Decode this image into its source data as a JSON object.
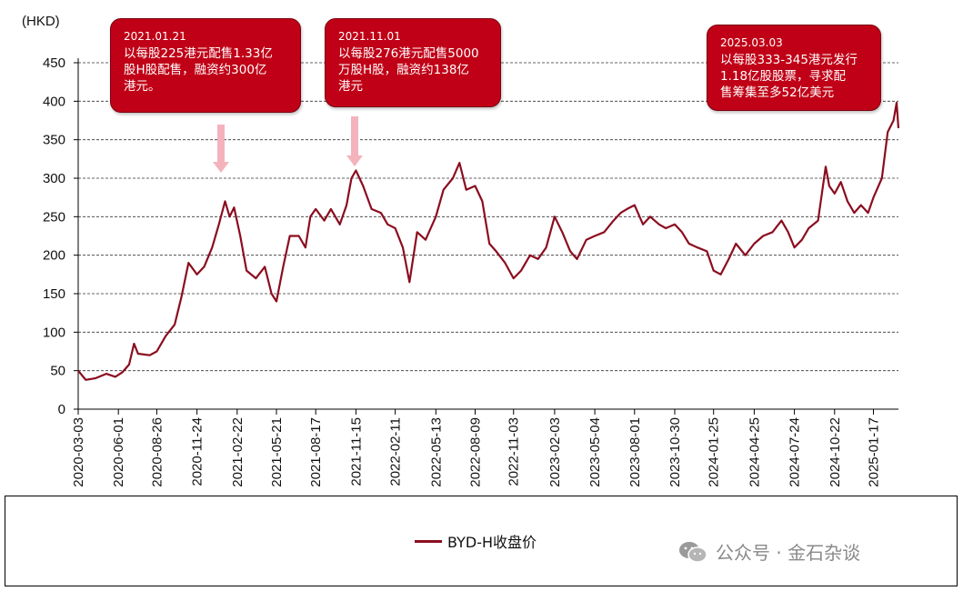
{
  "chart_data": {
    "type": "line",
    "unit_label": "(HKD)",
    "ylim": [
      0,
      450
    ],
    "y_ticks": [
      "0",
      "50",
      "100",
      "150",
      "200",
      "250",
      "300",
      "350",
      "400",
      "450"
    ],
    "x_ticks": [
      "2020-03-03",
      "2020-06-01",
      "2020-08-26",
      "2020-11-24",
      "2021-02-22",
      "2021-05-21",
      "2021-08-17",
      "2021-11-15",
      "2022-02-11",
      "2022-05-13",
      "2022-08-09",
      "2022-11-03",
      "2023-02-03",
      "2023-05-04",
      "2023-08-01",
      "2023-10-30",
      "2024-01-25",
      "2024-04-25",
      "2024-07-24",
      "2024-10-22",
      "2025-01-17"
    ],
    "grid": "horizontal-dashed",
    "legend_position": "bottom-center",
    "series": [
      {
        "name": "BYD-H收盘价",
        "color": "#8b0d1f",
        "points": [
          [
            "2020-03-03",
            50
          ],
          [
            "2020-03-20",
            38
          ],
          [
            "2020-04-10",
            40
          ],
          [
            "2020-05-05",
            46
          ],
          [
            "2020-05-25",
            42
          ],
          [
            "2020-06-10",
            48
          ],
          [
            "2020-06-25",
            58
          ],
          [
            "2020-07-06",
            85
          ],
          [
            "2020-07-15",
            72
          ],
          [
            "2020-08-10",
            70
          ],
          [
            "2020-08-26",
            75
          ],
          [
            "2020-09-15",
            95
          ],
          [
            "2020-10-05",
            110
          ],
          [
            "2020-10-20",
            145
          ],
          [
            "2020-11-05",
            190
          ],
          [
            "2020-11-24",
            175
          ],
          [
            "2020-12-10",
            185
          ],
          [
            "2020-12-28",
            210
          ],
          [
            "2021-01-12",
            240
          ],
          [
            "2021-01-26",
            270
          ],
          [
            "2021-02-05",
            250
          ],
          [
            "2021-02-15",
            262
          ],
          [
            "2021-03-01",
            225
          ],
          [
            "2021-03-15",
            180
          ],
          [
            "2021-04-05",
            170
          ],
          [
            "2021-04-25",
            185
          ],
          [
            "2021-05-10",
            150
          ],
          [
            "2021-05-21",
            140
          ],
          [
            "2021-06-05",
            185
          ],
          [
            "2021-06-20",
            225
          ],
          [
            "2021-07-10",
            225
          ],
          [
            "2021-07-25",
            210
          ],
          [
            "2021-08-05",
            250
          ],
          [
            "2021-08-17",
            260
          ],
          [
            "2021-09-05",
            245
          ],
          [
            "2021-09-20",
            260
          ],
          [
            "2021-10-10",
            240
          ],
          [
            "2021-10-25",
            265
          ],
          [
            "2021-11-05",
            300
          ],
          [
            "2021-11-15",
            310
          ],
          [
            "2021-12-01",
            290
          ],
          [
            "2021-12-20",
            260
          ],
          [
            "2022-01-10",
            255
          ],
          [
            "2022-01-25",
            240
          ],
          [
            "2022-02-11",
            235
          ],
          [
            "2022-02-28",
            210
          ],
          [
            "2022-03-15",
            165
          ],
          [
            "2022-04-01",
            230
          ],
          [
            "2022-04-20",
            220
          ],
          [
            "2022-05-13",
            250
          ],
          [
            "2022-05-30",
            285
          ],
          [
            "2022-06-20",
            300
          ],
          [
            "2022-07-05",
            320
          ],
          [
            "2022-07-20",
            285
          ],
          [
            "2022-08-09",
            290
          ],
          [
            "2022-08-25",
            270
          ],
          [
            "2022-09-10",
            215
          ],
          [
            "2022-09-25",
            205
          ],
          [
            "2022-10-15",
            190
          ],
          [
            "2022-11-03",
            170
          ],
          [
            "2022-11-20",
            180
          ],
          [
            "2022-12-10",
            200
          ],
          [
            "2022-12-28",
            195
          ],
          [
            "2023-01-15",
            210
          ],
          [
            "2023-02-03",
            250
          ],
          [
            "2023-02-20",
            230
          ],
          [
            "2023-03-10",
            205
          ],
          [
            "2023-03-25",
            195
          ],
          [
            "2023-04-15",
            220
          ],
          [
            "2023-05-04",
            225
          ],
          [
            "2023-05-25",
            230
          ],
          [
            "2023-06-15",
            245
          ],
          [
            "2023-07-01",
            255
          ],
          [
            "2023-07-15",
            260
          ],
          [
            "2023-08-01",
            265
          ],
          [
            "2023-08-20",
            240
          ],
          [
            "2023-09-05",
            250
          ],
          [
            "2023-09-25",
            240
          ],
          [
            "2023-10-10",
            235
          ],
          [
            "2023-10-30",
            240
          ],
          [
            "2023-11-15",
            230
          ],
          [
            "2023-12-01",
            215
          ],
          [
            "2023-12-20",
            210
          ],
          [
            "2024-01-10",
            205
          ],
          [
            "2024-01-25",
            180
          ],
          [
            "2024-02-10",
            175
          ],
          [
            "2024-02-28",
            195
          ],
          [
            "2024-03-15",
            215
          ],
          [
            "2024-04-05",
            200
          ],
          [
            "2024-04-25",
            215
          ],
          [
            "2024-05-15",
            225
          ],
          [
            "2024-06-05",
            230
          ],
          [
            "2024-06-25",
            245
          ],
          [
            "2024-07-10",
            230
          ],
          [
            "2024-07-24",
            210
          ],
          [
            "2024-08-10",
            220
          ],
          [
            "2024-08-25",
            235
          ],
          [
            "2024-09-15",
            245
          ],
          [
            "2024-10-02",
            315
          ],
          [
            "2024-10-10",
            290
          ],
          [
            "2024-10-22",
            280
          ],
          [
            "2024-11-05",
            295
          ],
          [
            "2024-11-20",
            270
          ],
          [
            "2024-12-05",
            255
          ],
          [
            "2024-12-20",
            265
          ],
          [
            "2025-01-05",
            255
          ],
          [
            "2025-01-17",
            275
          ],
          [
            "2025-02-05",
            300
          ],
          [
            "2025-02-18",
            360
          ],
          [
            "2025-03-03",
            375
          ],
          [
            "2025-03-10",
            398
          ],
          [
            "2025-03-14",
            365
          ]
        ]
      }
    ],
    "annotations": [
      {
        "date": "2021.01.21",
        "text": "以每股225港元配售1.33亿\n股H股配售，融资约300亿\n港元。"
      },
      {
        "date": "2021.11.01",
        "text": "以每股276港元配售5000\n万股H股，融资约138亿\n港元"
      },
      {
        "date": "2025.03.03",
        "text": "以每股333-345港元发行\n1.18亿股股票，寻求配\n售筹集至多52亿美元"
      }
    ]
  },
  "watermark": {
    "text": "公众号 · 金石杂谈"
  }
}
